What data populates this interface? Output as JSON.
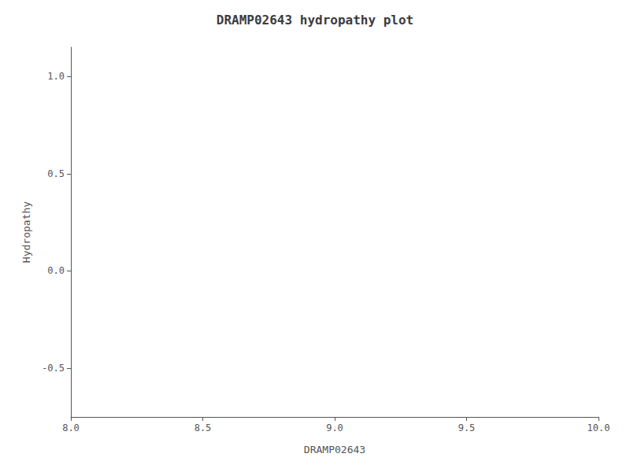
{
  "chart_data": {
    "type": "line",
    "title": "DRAMP02643 hydropathy plot",
    "xlabel": "DRAMP02643",
    "ylabel": "Hydropathy",
    "xlim": [
      8.0,
      10.0
    ],
    "ylim": [
      -0.75,
      1.15
    ],
    "xticks": [
      {
        "value": 8.0,
        "label": "8.0"
      },
      8.5,
      {
        "value": 9.0,
        "label": "9.0"
      },
      9.5,
      {
        "value": 10.0,
        "label": "10.0"
      }
    ],
    "yticks": [
      -0.5,
      {
        "value": 0.0,
        "label": "0.0"
      },
      0.5,
      {
        "value": 1.0,
        "label": "1.0"
      }
    ],
    "grid": false
  }
}
